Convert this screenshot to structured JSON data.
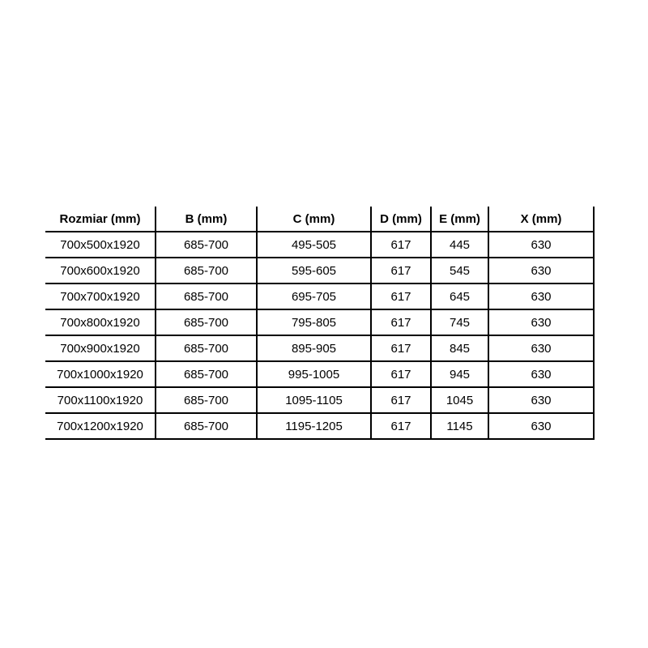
{
  "table": {
    "columns": [
      "Rozmiar (mm)",
      "B (mm)",
      "C (mm)",
      "D (mm)",
      "E (mm)",
      "X (mm)"
    ],
    "rows": [
      [
        "700x500x1920",
        "685-700",
        "495-505",
        "617",
        "445",
        "630"
      ],
      [
        "700x600x1920",
        "685-700",
        "595-605",
        "617",
        "545",
        "630"
      ],
      [
        "700x700x1920",
        "685-700",
        "695-705",
        "617",
        "645",
        "630"
      ],
      [
        "700x800x1920",
        "685-700",
        "795-805",
        "617",
        "745",
        "630"
      ],
      [
        "700x900x1920",
        "685-700",
        "895-905",
        "617",
        "845",
        "630"
      ],
      [
        "700x1000x1920",
        "685-700",
        "995-1005",
        "617",
        "945",
        "630"
      ],
      [
        "700x1100x1920",
        "685-700",
        "1095-1105",
        "617",
        "1045",
        "630"
      ],
      [
        "700x1200x1920",
        "685-700",
        "1195-1205",
        "617",
        "1145",
        "630"
      ]
    ],
    "border_color": "#000000",
    "text_color": "#000000",
    "background_color": "#ffffff"
  },
  "chart_data": {
    "type": "table",
    "title": "",
    "columns": [
      "Rozmiar (mm)",
      "B (mm)",
      "C (mm)",
      "D (mm)",
      "E (mm)",
      "X (mm)"
    ],
    "rows": [
      [
        "700x500x1920",
        "685-700",
        "495-505",
        "617",
        "445",
        "630"
      ],
      [
        "700x600x1920",
        "685-700",
        "595-605",
        "617",
        "545",
        "630"
      ],
      [
        "700x700x1920",
        "685-700",
        "695-705",
        "617",
        "645",
        "630"
      ],
      [
        "700x800x1920",
        "685-700",
        "795-805",
        "617",
        "745",
        "630"
      ],
      [
        "700x900x1920",
        "685-700",
        "895-905",
        "617",
        "845",
        "630"
      ],
      [
        "700x1000x1920",
        "685-700",
        "995-1005",
        "617",
        "945",
        "630"
      ],
      [
        "700x1100x1920",
        "685-700",
        "1095-1105",
        "617",
        "1045",
        "630"
      ],
      [
        "700x1200x1920",
        "685-700",
        "1195-1205",
        "617",
        "1145",
        "630"
      ]
    ]
  }
}
